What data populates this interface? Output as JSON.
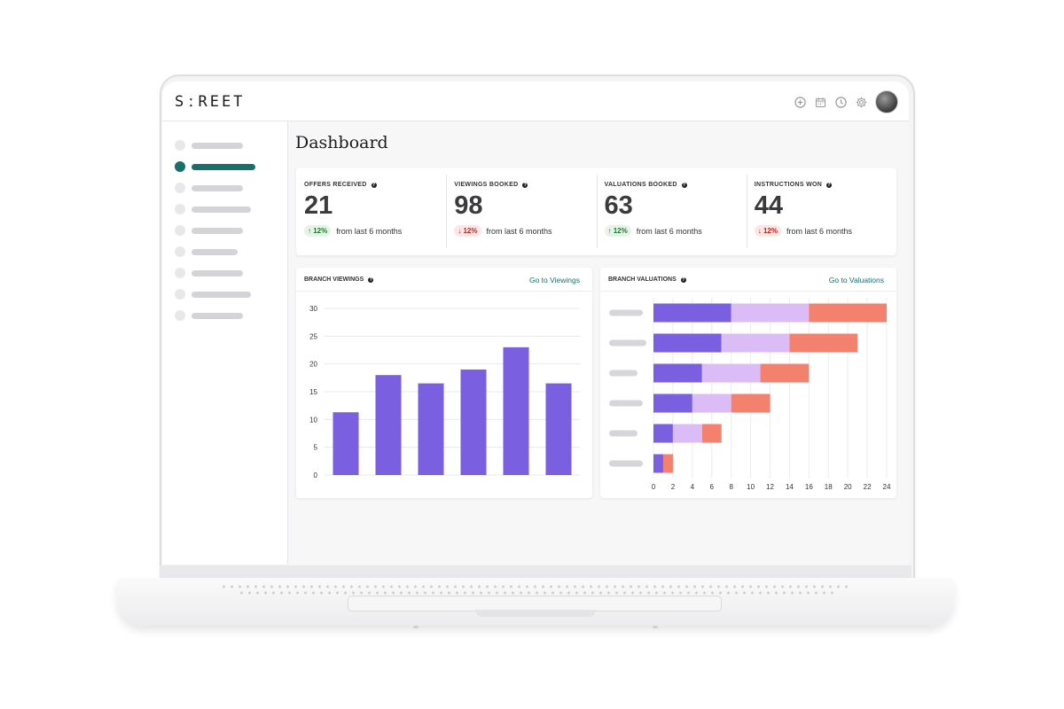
{
  "app": {
    "logo": "SːREET"
  },
  "header": {
    "icons": [
      "add-circle-icon",
      "calendar-icon",
      "clock-icon",
      "settings-gear-icon"
    ]
  },
  "sidebar": {
    "active_index": 1,
    "item_count": 9
  },
  "page": {
    "title": "Dashboard"
  },
  "stats": [
    {
      "label": "OFFERS RECEIVED",
      "value": "21",
      "delta": "12%",
      "direction": "up",
      "period": "from last 6 months"
    },
    {
      "label": "VIEWINGS BOOKED",
      "value": "98",
      "delta": "12%",
      "direction": "down",
      "period": "from last 6 months"
    },
    {
      "label": "VALUATIONS BOOKED",
      "value": "63",
      "delta": "12%",
      "direction": "up",
      "period": "from last 6 months"
    },
    {
      "label": "INSTRUCTIONS WON",
      "value": "44",
      "delta": "12%",
      "direction": "down",
      "period": "from last 6 months"
    }
  ],
  "cards": {
    "viewings": {
      "title": "BRANCH VIEWINGS",
      "link": "Go to Viewings"
    },
    "valuations": {
      "title": "BRANCH VALUATIONS",
      "link": "Go to Valuations"
    }
  },
  "colors": {
    "accent": "#17706c",
    "bar": "#7a5fe0",
    "seg1": "#7a5fe0",
    "seg2": "#dcbcf7",
    "seg3": "#f4806e"
  },
  "chart_data": [
    {
      "type": "bar",
      "title": "BRANCH VIEWINGS",
      "categories": [
        "",
        "",
        "",
        "",
        "",
        ""
      ],
      "values": [
        11.3,
        18,
        16.5,
        19,
        23,
        16.5
      ],
      "ylim": [
        0,
        30
      ],
      "yticks": [
        0,
        5,
        10,
        15,
        20,
        25,
        30
      ],
      "grid": true
    },
    {
      "type": "bar",
      "orientation": "horizontal",
      "stacked": true,
      "title": "BRANCH VALUATIONS",
      "categories": [
        "",
        "",
        "",
        "",
        "",
        ""
      ],
      "series": [
        {
          "values": [
            8,
            7,
            5,
            4,
            2,
            1
          ]
        },
        {
          "values": [
            8,
            7,
            6,
            4,
            3,
            0
          ]
        },
        {
          "values": [
            8,
            7,
            5,
            4,
            2,
            1
          ]
        }
      ],
      "xlim": [
        0,
        24
      ],
      "xticks": [
        0,
        2,
        4,
        6,
        8,
        10,
        12,
        14,
        16,
        18,
        20,
        22,
        24
      ],
      "grid": true
    }
  ]
}
